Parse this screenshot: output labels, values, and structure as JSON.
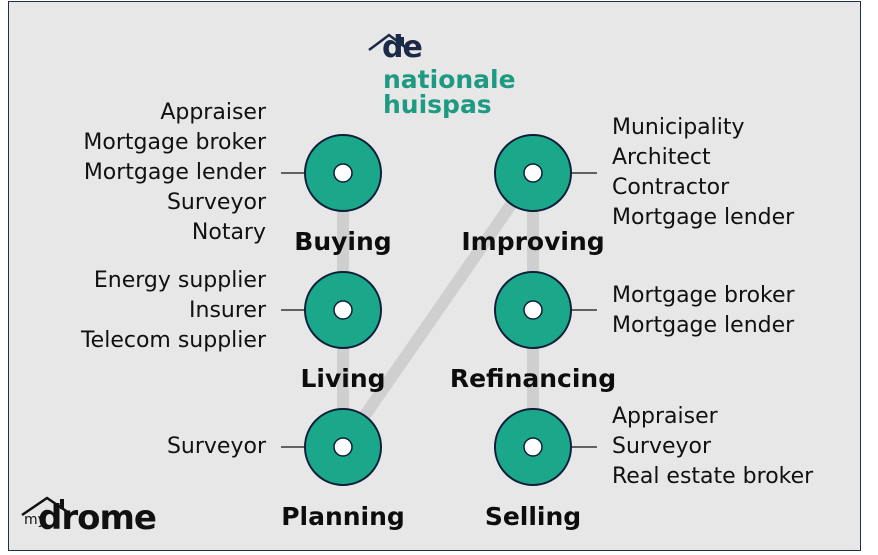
{
  "logo": {
    "de": "de",
    "line1": "nationale",
    "line2": "huispas"
  },
  "brand": {
    "my": "my",
    "drome": "drome"
  },
  "stages": {
    "buying": {
      "label": "Buying",
      "roles": [
        "Appraiser",
        "Mortgage broker",
        "Mortgage lender",
        "Surveyor",
        "Notary"
      ]
    },
    "living": {
      "label": "Living",
      "roles": [
        "Energy supplier",
        "Insurer",
        "Telecom supplier"
      ]
    },
    "planning": {
      "label": "Planning",
      "roles": [
        "Surveyor"
      ]
    },
    "improving": {
      "label": "Improving",
      "roles": [
        "Municipality",
        "Architect",
        "Contractor",
        "Mortgage lender"
      ]
    },
    "refinancing": {
      "label": "Refinancing",
      "roles": [
        "Mortgage broker",
        "Mortgage lender"
      ]
    },
    "selling": {
      "label": "Selling",
      "roles": [
        "Appraiser",
        "Surveyor",
        "Real estate broker"
      ]
    }
  },
  "colors": {
    "node_fill": "#1ba88a",
    "node_stroke": "#0d1e3a",
    "path": "#cfcfcf",
    "background": "#e7e7e7",
    "logo_teal": "#1e9a83",
    "logo_navy": "#1b2a48"
  }
}
